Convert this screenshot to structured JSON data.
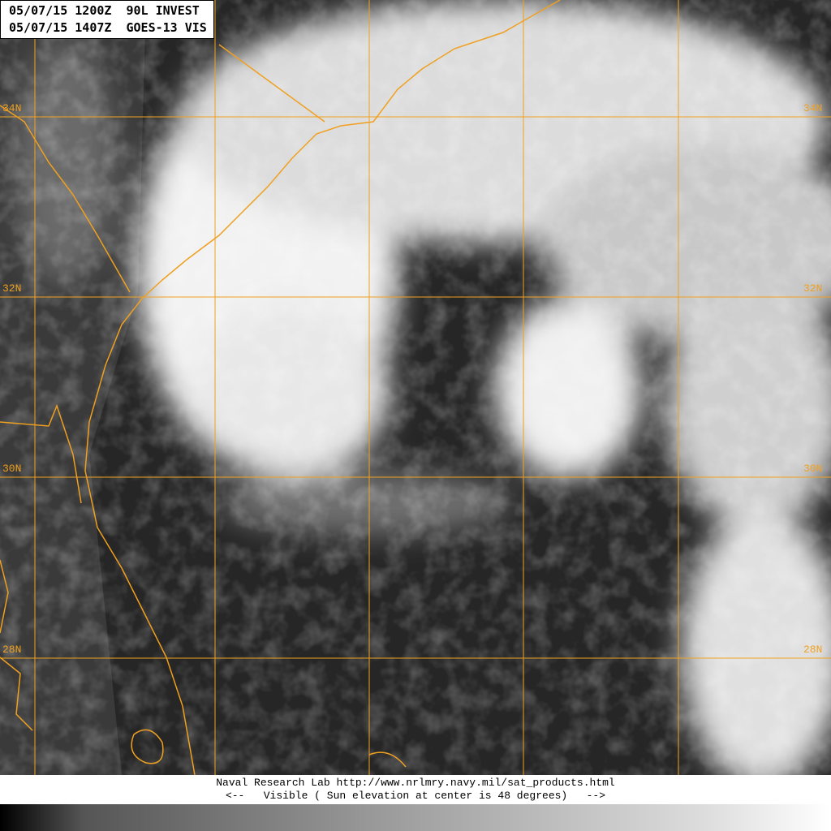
{
  "header": {
    "line1": "05/07/15 1200Z  90L INVEST",
    "line2": "05/07/15 1407Z  GOES-13 VIS"
  },
  "latitude_labels": [
    "34N",
    "32N",
    "30N",
    "28N"
  ],
  "footer": {
    "line1": "Naval Research Lab http://www.nrlmry.navy.mil/sat_products.html",
    "line2": "<--   Visible ( Sun elevation at center is 48 degrees)   -->"
  },
  "colors": {
    "coastline": "#f0a020",
    "grid": "#f0a020"
  },
  "colorbar": {
    "min_color": "#000000",
    "max_color": "#ffffff"
  }
}
